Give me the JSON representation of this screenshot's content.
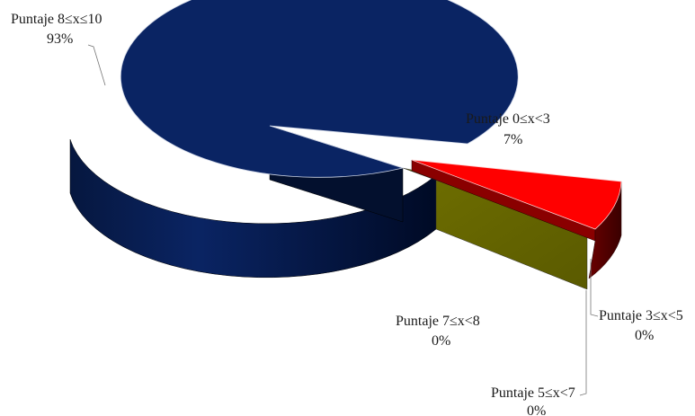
{
  "chart_data": {
    "type": "pie",
    "style": "3d-exploded",
    "legend": "none",
    "slices": [
      {
        "label": "Puntaje  8≤x≤10",
        "percent_label": "93%",
        "value": 93,
        "color": "#0a2463"
      },
      {
        "label": "Puntaje  0≤x<3",
        "percent_label": "7%",
        "value": 7,
        "color": "#ff0000"
      },
      {
        "label": "Puntaje  3≤x<5",
        "percent_label": "0%",
        "value": 0,
        "color": "#7a7a00"
      },
      {
        "label": "Puntaje  5≤x<7",
        "percent_label": "0%",
        "value": 0,
        "color": "#7a7a00"
      },
      {
        "label": "Puntaje  7≤x<8",
        "percent_label": "0%",
        "value": 0,
        "color": "#0a2463"
      }
    ]
  }
}
